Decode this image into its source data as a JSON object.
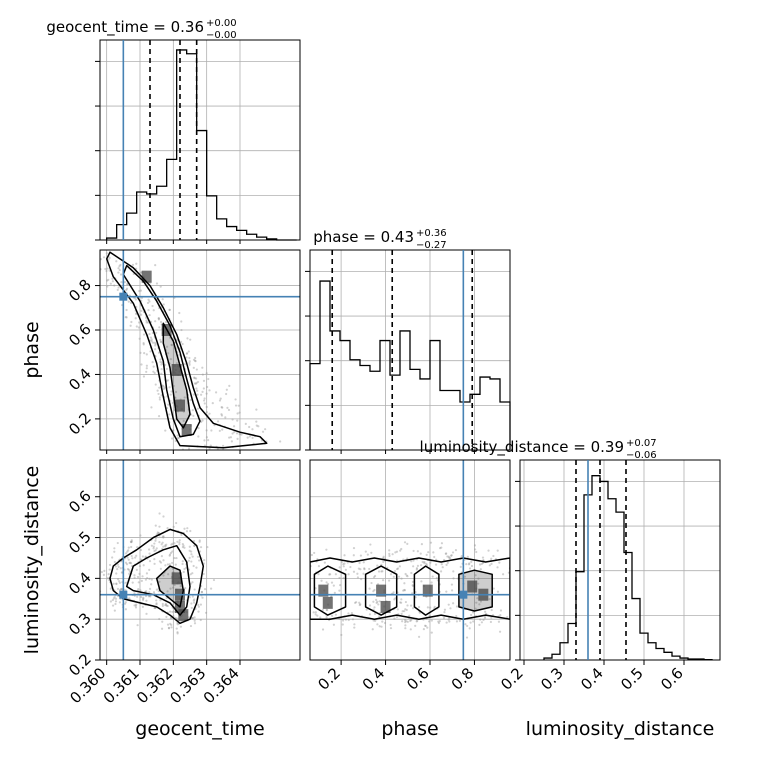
{
  "chart_data": {
    "type": "corner",
    "parameters": [
      "geocent_time",
      "phase",
      "luminosity_distance"
    ],
    "truths": [
      0.3605,
      0.75,
      0.36
    ],
    "colors": {
      "truth": "#4682b4",
      "hist": "#000000",
      "quantile": "#000000",
      "grid": "#b0b0b0",
      "points": "#9a9a9a"
    },
    "diagonal": [
      {
        "param": "geocent_time",
        "title": "geocent_time = 0.36",
        "sup": "+0.00",
        "sub": "−0.00",
        "range": [
          0.3598,
          0.3658
        ],
        "ymax": 1.0,
        "quantiles": [
          0.3613,
          0.3622,
          0.3627
        ],
        "edges": [
          0.36,
          0.3603,
          0.3606,
          0.3609,
          0.3612,
          0.3615,
          0.3618,
          0.3621,
          0.3624,
          0.3627,
          0.363,
          0.3633,
          0.3636,
          0.3639,
          0.3642,
          0.3645,
          0.3648,
          0.3651,
          0.3654,
          0.3657
        ],
        "heights": [
          0.01,
          0.08,
          0.14,
          0.25,
          0.24,
          0.28,
          0.42,
          0.99,
          0.97,
          0.57,
          0.23,
          0.11,
          0.07,
          0.05,
          0.03,
          0.015,
          0.006,
          0.0,
          0.0
        ]
      },
      {
        "param": "phase",
        "title": "phase = 0.43",
        "sup": "+0.36",
        "sub": "−0.27",
        "range": [
          0.06,
          0.96
        ],
        "ymax": 1.0,
        "quantiles": [
          0.16,
          0.43,
          0.79
        ],
        "edges": [
          0.06,
          0.105,
          0.15,
          0.195,
          0.24,
          0.285,
          0.33,
          0.375,
          0.42,
          0.465,
          0.51,
          0.555,
          0.6,
          0.645,
          0.69,
          0.735,
          0.78,
          0.825,
          0.87,
          0.915,
          0.96
        ],
        "heights": [
          0.45,
          0.88,
          0.62,
          0.57,
          0.47,
          0.44,
          0.41,
          0.57,
          0.39,
          0.62,
          0.42,
          0.37,
          0.57,
          0.31,
          0.31,
          0.25,
          0.29,
          0.38,
          0.37,
          0.25
        ]
      },
      {
        "param": "luminosity_distance",
        "title": "luminosity_distance = 0.39",
        "sup": "+0.07",
        "sub": "−0.06",
        "range": [
          0.19,
          0.69
        ],
        "ymax": 1.0,
        "quantiles": [
          0.33,
          0.39,
          0.455
        ],
        "edges": [
          0.25,
          0.27,
          0.29,
          0.31,
          0.33,
          0.35,
          0.37,
          0.39,
          0.41,
          0.43,
          0.45,
          0.47,
          0.49,
          0.51,
          0.53,
          0.55,
          0.57,
          0.59,
          0.61,
          0.63,
          0.65,
          0.67
        ],
        "heights": [
          0.01,
          0.03,
          0.09,
          0.19,
          0.46,
          0.86,
          0.96,
          0.93,
          0.84,
          0.77,
          0.56,
          0.32,
          0.14,
          0.09,
          0.06,
          0.04,
          0.02,
          0.01,
          0.005,
          0.005,
          0.002
        ]
      }
    ],
    "axes": {
      "geocent_time": {
        "range": [
          0.3598,
          0.3658
        ],
        "ticks": [
          0.36,
          0.361,
          0.362,
          0.363,
          0.364
        ],
        "ticklabels": [
          "0.360",
          "0.361",
          "0.362",
          "0.363",
          "0.364"
        ]
      },
      "phase": {
        "range": [
          0.06,
          0.96
        ],
        "ticks": [
          0.2,
          0.4,
          0.6,
          0.8
        ],
        "ticklabels": [
          "0.2",
          "0.4",
          "0.6",
          "0.8"
        ]
      },
      "luminosity_distance": {
        "range": [
          0.19,
          0.69
        ],
        "ticks": [
          0.2,
          0.3,
          0.4,
          0.5,
          0.6
        ],
        "ticklabels": [
          "0.2",
          "0.3",
          "0.4",
          "0.5",
          "0.6"
        ]
      },
      "phase_y": {
        "range": [
          0.06,
          0.96
        ],
        "ticks": [
          0.2,
          0.4,
          0.6,
          0.8
        ],
        "ticklabels": [
          "0.2",
          "0.4",
          "0.6",
          "0.8"
        ]
      },
      "luminosity_distance_y": {
        "range": [
          0.2,
          0.69
        ],
        "ticks": [
          0.2,
          0.3,
          0.4,
          0.5,
          0.6
        ],
        "ticklabels": [
          "0.2",
          "0.3",
          "0.4",
          "0.5",
          "0.6"
        ]
      }
    },
    "xlabels": [
      "geocent_time",
      "phase",
      "luminosity_distance"
    ],
    "ylabels": [
      "phase",
      "luminosity_distance"
    ],
    "panels2d": [
      {
        "id": "geocent_time-vs-phase",
        "x": "geocent_time",
        "y": "phase",
        "dense": [
          [
            0.3612,
            0.84
          ],
          [
            0.3618,
            0.6
          ],
          [
            0.3621,
            0.42
          ],
          [
            0.3622,
            0.26
          ],
          [
            0.3624,
            0.15
          ]
        ],
        "contours": [
          [
            [
              0.3601,
              0.95
            ],
            [
              0.3608,
              0.88
            ],
            [
              0.3613,
              0.8
            ],
            [
              0.3617,
              0.7
            ],
            [
              0.3621,
              0.58
            ],
            [
              0.3624,
              0.45
            ],
            [
              0.3626,
              0.34
            ],
            [
              0.3628,
              0.25
            ],
            [
              0.3632,
              0.18
            ],
            [
              0.364,
              0.14
            ],
            [
              0.3646,
              0.12
            ],
            [
              0.3648,
              0.09
            ],
            [
              0.3635,
              0.07
            ],
            [
              0.3622,
              0.08
            ],
            [
              0.3619,
              0.16
            ],
            [
              0.3617,
              0.3
            ],
            [
              0.3615,
              0.45
            ],
            [
              0.3612,
              0.58
            ],
            [
              0.3608,
              0.72
            ],
            [
              0.3602,
              0.84
            ],
            [
              0.36,
              0.92
            ]
          ],
          [
            [
              0.3606,
              0.89
            ],
            [
              0.3611,
              0.82
            ],
            [
              0.3615,
              0.73
            ],
            [
              0.3619,
              0.62
            ],
            [
              0.3622,
              0.5
            ],
            [
              0.3624,
              0.38
            ],
            [
              0.3626,
              0.27
            ],
            [
              0.3628,
              0.19
            ],
            [
              0.3626,
              0.13
            ],
            [
              0.3622,
              0.12
            ],
            [
              0.362,
              0.2
            ],
            [
              0.3618,
              0.33
            ],
            [
              0.3617,
              0.46
            ],
            [
              0.3614,
              0.6
            ],
            [
              0.361,
              0.73
            ],
            [
              0.3605,
              0.85
            ]
          ],
          [
            [
              0.3617,
              0.63
            ],
            [
              0.362,
              0.55
            ],
            [
              0.3622,
              0.44
            ],
            [
              0.3624,
              0.33
            ],
            [
              0.3625,
              0.22
            ],
            [
              0.3623,
              0.16
            ],
            [
              0.3621,
              0.2
            ],
            [
              0.362,
              0.32
            ],
            [
              0.3619,
              0.43
            ],
            [
              0.3617,
              0.54
            ]
          ]
        ]
      },
      {
        "id": "geocent_time-vs-luminosity_distance",
        "x": "geocent_time",
        "y": "luminosity_distance",
        "dense": [
          [
            0.3622,
            0.36
          ],
          [
            0.3622,
            0.33
          ],
          [
            0.3621,
            0.4
          ],
          [
            0.3623,
            0.31
          ]
        ],
        "contours": [
          [
            [
              0.3601,
              0.4
            ],
            [
              0.3602,
              0.43
            ],
            [
              0.3605,
              0.45
            ],
            [
              0.3609,
              0.47
            ],
            [
              0.3614,
              0.5
            ],
            [
              0.3619,
              0.52
            ],
            [
              0.3623,
              0.51
            ],
            [
              0.3627,
              0.48
            ],
            [
              0.3629,
              0.43
            ],
            [
              0.3628,
              0.38
            ],
            [
              0.3627,
              0.34
            ],
            [
              0.3625,
              0.3
            ],
            [
              0.3622,
              0.29
            ],
            [
              0.3619,
              0.31
            ],
            [
              0.3615,
              0.33
            ],
            [
              0.361,
              0.34
            ],
            [
              0.3605,
              0.35
            ],
            [
              0.3602,
              0.37
            ]
          ],
          [
            [
              0.3606,
              0.38
            ],
            [
              0.3608,
              0.43
            ],
            [
              0.3612,
              0.45
            ],
            [
              0.3617,
              0.47
            ],
            [
              0.3621,
              0.48
            ],
            [
              0.3624,
              0.44
            ],
            [
              0.3625,
              0.38
            ],
            [
              0.3624,
              0.33
            ],
            [
              0.3622,
              0.31
            ],
            [
              0.3619,
              0.34
            ],
            [
              0.3614,
              0.36
            ],
            [
              0.3608,
              0.37
            ]
          ],
          [
            [
              0.3615,
              0.4
            ],
            [
              0.3619,
              0.43
            ],
            [
              0.3622,
              0.42
            ],
            [
              0.3623,
              0.37
            ],
            [
              0.3622,
              0.33
            ],
            [
              0.3619,
              0.35
            ],
            [
              0.3616,
              0.37
            ]
          ]
        ]
      },
      {
        "id": "phase-vs-luminosity_distance",
        "x": "phase",
        "y": "luminosity_distance",
        "dense": [
          [
            0.12,
            0.37
          ],
          [
            0.14,
            0.34
          ],
          [
            0.38,
            0.37
          ],
          [
            0.4,
            0.33
          ],
          [
            0.59,
            0.37
          ],
          [
            0.79,
            0.38
          ],
          [
            0.84,
            0.36
          ]
        ],
        "contours": [
          [
            [
              0.06,
              0.44
            ],
            [
              0.15,
              0.45
            ],
            [
              0.25,
              0.44
            ],
            [
              0.35,
              0.45
            ],
            [
              0.45,
              0.44
            ],
            [
              0.55,
              0.45
            ],
            [
              0.65,
              0.44
            ],
            [
              0.75,
              0.45
            ],
            [
              0.85,
              0.44
            ],
            [
              0.96,
              0.45
            ],
            [
              0.96,
              0.3
            ],
            [
              0.85,
              0.31
            ],
            [
              0.75,
              0.3
            ],
            [
              0.65,
              0.31
            ],
            [
              0.55,
              0.3
            ],
            [
              0.45,
              0.31
            ],
            [
              0.35,
              0.3
            ],
            [
              0.25,
              0.31
            ],
            [
              0.15,
              0.3
            ],
            [
              0.06,
              0.3
            ]
          ],
          [
            [
              0.08,
              0.41
            ],
            [
              0.14,
              0.43
            ],
            [
              0.22,
              0.41
            ],
            [
              0.22,
              0.33
            ],
            [
              0.14,
              0.31
            ],
            [
              0.08,
              0.33
            ]
          ],
          [
            [
              0.31,
              0.41
            ],
            [
              0.38,
              0.43
            ],
            [
              0.45,
              0.41
            ],
            [
              0.45,
              0.33
            ],
            [
              0.38,
              0.31
            ],
            [
              0.31,
              0.33
            ]
          ],
          [
            [
              0.53,
              0.41
            ],
            [
              0.58,
              0.43
            ],
            [
              0.64,
              0.41
            ],
            [
              0.64,
              0.33
            ],
            [
              0.58,
              0.31
            ],
            [
              0.53,
              0.33
            ]
          ],
          [
            [
              0.73,
              0.41
            ],
            [
              0.8,
              0.42
            ],
            [
              0.88,
              0.41
            ],
            [
              0.88,
              0.33
            ],
            [
              0.8,
              0.32
            ],
            [
              0.73,
              0.33
            ]
          ]
        ]
      }
    ]
  }
}
